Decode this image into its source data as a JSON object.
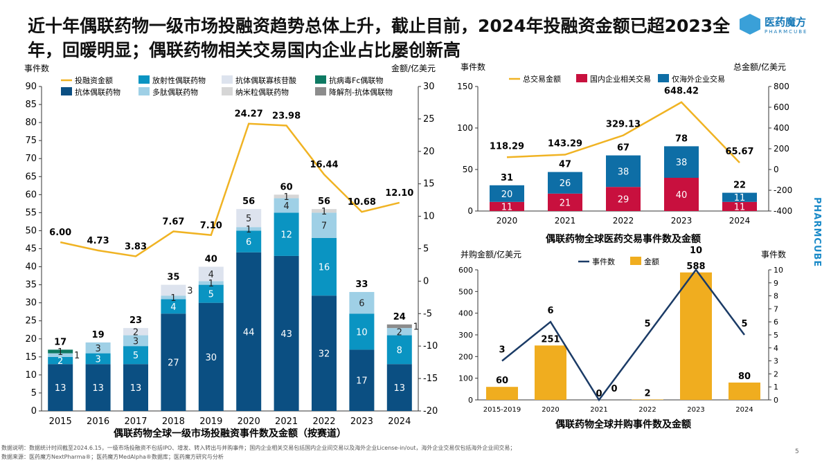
{
  "title": "近十年偶联药物一级市场投融资趋势总体上升，截止目前，2024年投融资金额已超2023全年，回暖明显；偶联药物相关交易国内企业占比屡创新高",
  "logo": {
    "name": "医药魔方",
    "sub": "PHARMCUBE"
  },
  "side_text": "PHARMCUBE",
  "notes": [
    "数据说明：数据统计时间截至2024.6.15，一级市场投融资不包括IPO、增发、转入转出与并购事件；国内企业相关交易包括国内企业间交易以及海外企业License-in/out，海外企业交易仅包括海外企业间交易；",
    "数据来源：医药魔方NextPharma®；医药魔方MedAlpha®数据库；医药魔方研究与分析"
  ],
  "page_number": "5",
  "chart_data": [
    {
      "type": "bar+line",
      "title": "偶联药物全球一级市场投融资事件数及金额（按赛道）",
      "ylabel": "事件数",
      "y2label": "金额/亿美元",
      "ylim": [
        0,
        90
      ],
      "yticks": [
        0,
        5,
        10,
        15,
        20,
        25,
        30,
        35,
        40,
        45,
        50,
        55,
        60,
        65,
        70,
        75,
        80,
        85,
        90
      ],
      "y2lim": [
        -20,
        30
      ],
      "y2ticks": [
        -20,
        -15,
        -10,
        -5,
        0,
        5,
        10,
        15,
        20,
        25,
        30
      ],
      "categories": [
        "2015",
        "2016",
        "2017",
        "2018",
        "2019",
        "2020",
        "2021",
        "2022",
        "2023",
        "2024"
      ],
      "totals": [
        17,
        19,
        23,
        35,
        40,
        56,
        60,
        56,
        33,
        24
      ],
      "series": [
        {
          "name": "抗体偶联药物",
          "color": "#0b4f82",
          "values": [
            13,
            13,
            13,
            27,
            30,
            44,
            43,
            32,
            17,
            13
          ]
        },
        {
          "name": "放射性偶联药物",
          "color": "#0a94c2",
          "values": [
            2,
            3,
            5,
            4,
            5,
            6,
            12,
            16,
            10,
            8
          ]
        },
        {
          "name": "多肽偶联药物",
          "color": "#9fd0e6",
          "values": [
            1,
            3,
            3,
            1,
            1,
            1,
            4,
            7,
            6,
            2
          ]
        },
        {
          "name": "抗体偶联寡核苷酸",
          "color": "#dde3ee",
          "values": [
            0,
            0,
            2,
            3,
            4,
            5,
            0,
            0,
            0,
            0
          ]
        },
        {
          "name": "纳米粒偶联药物",
          "color": "#d6d6d6",
          "values": [
            0,
            0,
            0,
            0,
            0,
            0,
            1,
            1,
            0,
            0
          ]
        },
        {
          "name": "降解剂-抗体偶联物",
          "color": "#8c8c8c",
          "values": [
            0,
            0,
            0,
            0,
            0,
            0,
            0,
            0,
            0,
            1
          ]
        },
        {
          "name": "抗病毒Fc偶联物",
          "color": "#0e7a63",
          "values": [
            1,
            0,
            0,
            0,
            0,
            0,
            0,
            0,
            0,
            0
          ]
        }
      ],
      "line": {
        "name": "投融资金额",
        "color": "#f0b323",
        "values": [
          6.0,
          4.73,
          3.83,
          7.67,
          7.1,
          24.27,
          23.98,
          16.44,
          10.68,
          12.1
        ]
      },
      "legend": [
        "投融资金额",
        "放射性偶联药物",
        "抗体偶联寡核苷酸",
        "抗病毒Fc偶联物",
        "抗体偶联药物",
        "多肽偶联药物",
        "纳米粒偶联药物",
        "降解剂-抗体偶联物"
      ]
    },
    {
      "type": "bar+line",
      "title": "偶联药物全球医药交易事件数及金额",
      "ylabel": "事件数",
      "y2label": "总金额/亿美元",
      "ylim": [
        0,
        150
      ],
      "yticks": [
        0,
        50,
        100,
        150
      ],
      "y2lim": [
        -400,
        800
      ],
      "y2ticks": [
        -400,
        -200,
        0,
        200,
        400,
        600,
        800
      ],
      "categories": [
        "2020",
        "2021",
        "2022",
        "2023",
        "2024"
      ],
      "totals": [
        31,
        47,
        67,
        78,
        22
      ],
      "series": [
        {
          "name": "国内企业相关交易",
          "color": "#c8103e",
          "values": [
            11,
            21,
            29,
            40,
            11
          ]
        },
        {
          "name": "仅海外企业交易",
          "color": "#0e6ea6",
          "values": [
            20,
            26,
            38,
            38,
            11
          ]
        }
      ],
      "line": {
        "name": "总交易金额",
        "color": "#f0b323",
        "values": [
          118.29,
          143.29,
          329.13,
          648.42,
          65.67
        ]
      },
      "legend": [
        "总交易金额",
        "国内企业相关交易",
        "仅海外企业交易"
      ]
    },
    {
      "type": "bar+line",
      "title": "偶联药物全球并购事件数及金额",
      "ylabel": "并购金额/亿美元",
      "y2label": "事件数",
      "ylim": [
        0,
        600
      ],
      "yticks": [
        0,
        100,
        200,
        300,
        400,
        500,
        600
      ],
      "y2lim": [
        0,
        10
      ],
      "y2ticks": [
        0,
        1,
        2,
        3,
        4,
        5,
        6,
        7,
        8,
        9,
        10
      ],
      "categories": [
        "2015-2019",
        "2020",
        "2021",
        "2022",
        "2023",
        "2024"
      ],
      "series": [
        {
          "name": "金额",
          "color": "#f0ad1f",
          "values": [
            60,
            251,
            0,
            2,
            588,
            80
          ]
        }
      ],
      "line": {
        "name": "事件数",
        "color": "#1b3b66",
        "values": [
          3,
          6,
          0,
          5,
          10,
          5
        ]
      },
      "legend": [
        "事件数",
        "金额"
      ]
    }
  ]
}
